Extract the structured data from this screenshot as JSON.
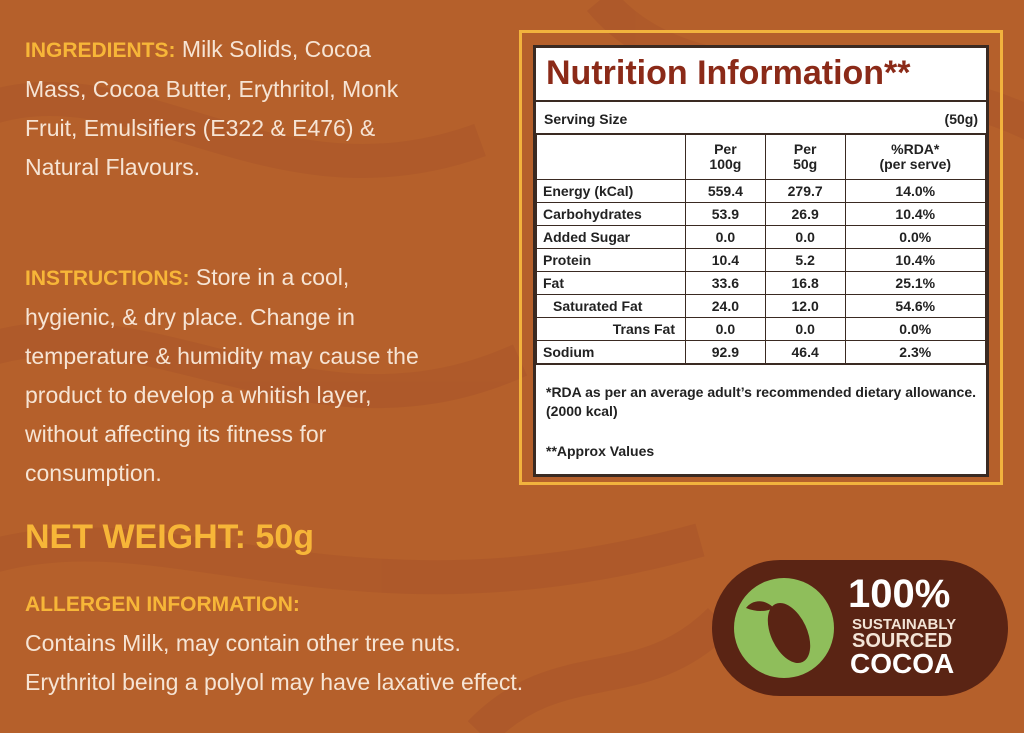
{
  "ingredients": {
    "label": "INGREDIENTS:",
    "text": "Milk Solids, Cocoa Mass, Cocoa Butter, Erythritol, Monk Fruit, Emulsifiers (E322 & E476) & Natural Flavours."
  },
  "instructions": {
    "label": "INSTRUCTIONS:",
    "text": "Store in a cool, hygienic, & dry place. Change in temperature & humidity may cause the product to develop a whitish layer, without affecting its fitness for consumption."
  },
  "net_weight": "NET WEIGHT: 50g",
  "allergen": {
    "label": "ALLERGEN INFORMATION:",
    "lines": [
      "Contains Milk, may contain other tree nuts.",
      "Erythritol being a polyol may have laxative effect."
    ]
  },
  "nutrition": {
    "title": "Nutrition Information**",
    "serving_size": {
      "label": "Serving Size",
      "value": "(50g)"
    },
    "header": [
      [
        "Per",
        "100g"
      ],
      [
        "Per",
        "50g"
      ],
      [
        "%RDA*",
        "(per serve)"
      ]
    ],
    "rows": [
      [
        "Energy (kCal)",
        "559.4",
        "279.7",
        "14.0%"
      ],
      [
        "Carbohydrates",
        "53.9",
        "26.9",
        "10.4%"
      ],
      [
        "Added Sugar",
        "0.0",
        "0.0",
        "0.0%"
      ],
      [
        "Protein",
        "10.4",
        "5.2",
        "10.4%"
      ],
      [
        "Fat",
        "33.6",
        "16.8",
        "25.1%"
      ],
      [
        "Saturated Fat",
        "24.0",
        "12.0",
        "54.6%"
      ],
      [
        "Trans Fat",
        "0.0",
        "0.0",
        "0.0%"
      ],
      [
        "Sodium",
        "92.9",
        "46.4",
        "2.3%"
      ]
    ],
    "footnotes": [
      "*RDA as per an average adult’s recommended dietary allowance. (2000 kcal)",
      "**Approx Values"
    ]
  },
  "badge": [
    "100%",
    "SUSTAINABLY",
    "SOURCED",
    "COCOA"
  ]
}
